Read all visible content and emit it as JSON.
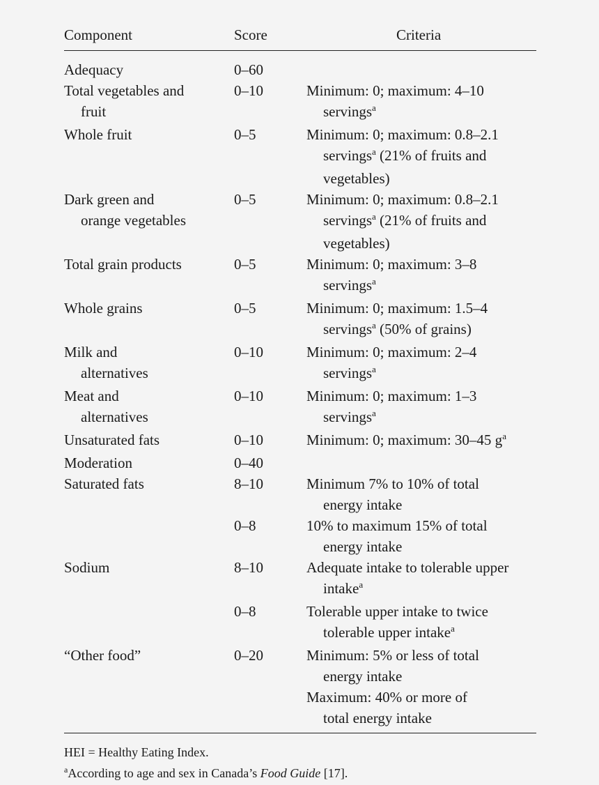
{
  "header": {
    "component": "Component",
    "score": "Score",
    "criteria": "Criteria"
  },
  "rows": [
    {
      "component": [
        "Adequacy"
      ],
      "score": "0–60",
      "criteria": []
    },
    {
      "component": [
        "Total vegetables and",
        "fruit"
      ],
      "score": "0–10",
      "criteria": [
        {
          "text": "Minimum: 0; maximum: 4–10",
          "sup": "",
          "after": ""
        },
        {
          "text": "servings",
          "sup": "a",
          "after": ""
        }
      ]
    },
    {
      "component": [
        "Whole fruit"
      ],
      "score": "0–5",
      "criteria": [
        {
          "text": "Minimum: 0; maximum: 0.8–2.1",
          "sup": "",
          "after": ""
        },
        {
          "text": "servings",
          "sup": "a",
          "after": " (21% of fruits and"
        },
        {
          "text": "vegetables)",
          "sup": "",
          "after": ""
        }
      ]
    },
    {
      "component": [
        "Dark green and",
        "orange vegetables"
      ],
      "score": "0–5",
      "criteria": [
        {
          "text": "Minimum: 0; maximum: 0.8–2.1",
          "sup": "",
          "after": ""
        },
        {
          "text": "servings",
          "sup": "a",
          "after": " (21% of fruits and"
        },
        {
          "text": "vegetables)",
          "sup": "",
          "after": ""
        }
      ]
    },
    {
      "component": [
        "Total grain products"
      ],
      "score": "0–5",
      "criteria": [
        {
          "text": "Minimum: 0; maximum: 3–8",
          "sup": "",
          "after": ""
        },
        {
          "text": "servings",
          "sup": "a",
          "after": ""
        }
      ]
    },
    {
      "component": [
        "Whole grains"
      ],
      "score": "0–5",
      "criteria": [
        {
          "text": "Minimum: 0; maximum: 1.5–4",
          "sup": "",
          "after": ""
        },
        {
          "text": "servings",
          "sup": "a",
          "after": " (50% of grains)"
        }
      ]
    },
    {
      "component": [
        "Milk and",
        "alternatives"
      ],
      "score": "0–10",
      "criteria": [
        {
          "text": "Minimum: 0; maximum: 2–4",
          "sup": "",
          "after": ""
        },
        {
          "text": "servings",
          "sup": "a",
          "after": ""
        }
      ]
    },
    {
      "component": [
        "Meat and",
        "alternatives"
      ],
      "score": "0–10",
      "criteria": [
        {
          "text": "Minimum: 0; maximum: 1–3",
          "sup": "",
          "after": ""
        },
        {
          "text": "servings",
          "sup": "a",
          "after": ""
        }
      ]
    },
    {
      "component": [
        "Unsaturated fats"
      ],
      "score": "0–10",
      "criteria": [
        {
          "text": "Minimum: 0; maximum: 30–45 g",
          "sup": "a",
          "after": ""
        }
      ]
    },
    {
      "component": [
        "Moderation"
      ],
      "score": "0–40",
      "criteria": []
    },
    {
      "component": [
        "Saturated fats"
      ],
      "score": "8–10",
      "criteria": [
        {
          "text": "Minimum 7% to 10% of total",
          "sup": "",
          "after": ""
        },
        {
          "text": "energy intake",
          "sup": "",
          "after": ""
        }
      ]
    },
    {
      "component": [],
      "score": "0–8",
      "criteria": [
        {
          "text": "10% to maximum 15% of total",
          "sup": "",
          "after": ""
        },
        {
          "text": "energy intake",
          "sup": "",
          "after": ""
        }
      ]
    },
    {
      "component": [
        "Sodium"
      ],
      "score": "8–10",
      "criteria": [
        {
          "text": "Adequate intake to tolerable upper",
          "sup": "",
          "after": ""
        },
        {
          "text": "intake",
          "sup": "a",
          "after": ""
        }
      ]
    },
    {
      "component": [],
      "score": "0–8",
      "criteria": [
        {
          "text": "Tolerable upper intake to twice",
          "sup": "",
          "after": ""
        },
        {
          "text": "tolerable upper intake",
          "sup": "a",
          "after": ""
        }
      ]
    },
    {
      "component": [
        "“Other food”"
      ],
      "score": "0–20",
      "criteria": [
        {
          "text": "Minimum: 5% or less of total",
          "sup": "",
          "after": ""
        },
        {
          "text": "energy intake",
          "sup": "",
          "after": ""
        },
        {
          "text": "Maximum: 40% or more of",
          "sup": "",
          "after": "",
          "indent": true
        },
        {
          "text": "total energy intake",
          "sup": "",
          "after": ""
        }
      ]
    }
  ],
  "notes": {
    "hei": "HEI = Healthy Eating Index.",
    "footnote_mark": "a",
    "footnote_pre": "According to age and sex in Canada’s ",
    "footnote_italic": "Food Guide",
    "footnote_post": " [17]."
  }
}
